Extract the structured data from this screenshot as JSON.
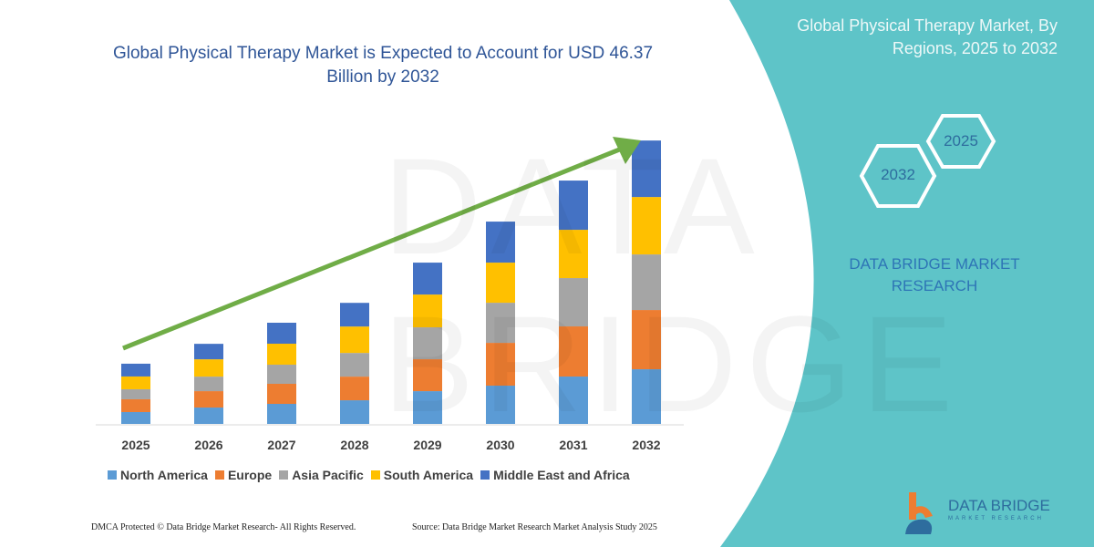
{
  "chart_data": {
    "type": "bar",
    "stacked": true,
    "title": "Global Physical Therapy Market is Expected to Account for USD 46.37 Billion by 2032",
    "xlabel": "",
    "ylabel": "",
    "grid": false,
    "legend_position": "bottom",
    "categories": [
      "2025",
      "2026",
      "2027",
      "2028",
      "2029",
      "2030",
      "2031",
      "2032"
    ],
    "series": [
      {
        "name": "North America",
        "color": "#5b9bd5",
        "values": [
          1.94,
          2.68,
          3.28,
          3.87,
          5.36,
          6.26,
          7.75,
          8.94
        ]
      },
      {
        "name": "Europe",
        "color": "#ed7d31",
        "values": [
          2.09,
          2.68,
          3.28,
          3.87,
          5.22,
          7.0,
          8.2,
          9.69
        ]
      },
      {
        "name": "Asia Pacific",
        "color": "#a5a5a5",
        "values": [
          1.64,
          2.38,
          3.13,
          3.87,
          5.22,
          6.56,
          7.9,
          9.09
        ]
      },
      {
        "name": "South America",
        "color": "#ffc000",
        "values": [
          2.09,
          2.83,
          3.43,
          4.32,
          5.36,
          6.56,
          7.9,
          9.39
        ]
      },
      {
        "name": "Middle East and Africa",
        "color": "#4472c4",
        "values": [
          2.09,
          2.53,
          3.43,
          3.87,
          5.22,
          6.71,
          8.05,
          9.24
        ]
      }
    ],
    "trend_arrow_color": "#70ad47"
  },
  "side_panel": {
    "title": "Global Physical Therapy Market, By Regions, 2025 to 2032",
    "hex_years": [
      "2032",
      "2025"
    ],
    "brand": "DATA BRIDGE MARKET RESEARCH",
    "color": "#5ec4c8"
  },
  "footer": {
    "left": "DMCA Protected © Data Bridge Market Research-  All Rights Reserved.",
    "right": "Source: Data Bridge Market Research  Market Analysis Study 2025"
  },
  "logo": {
    "name": "DATA BRIDGE",
    "sub": "MARKET RESEARCH"
  }
}
